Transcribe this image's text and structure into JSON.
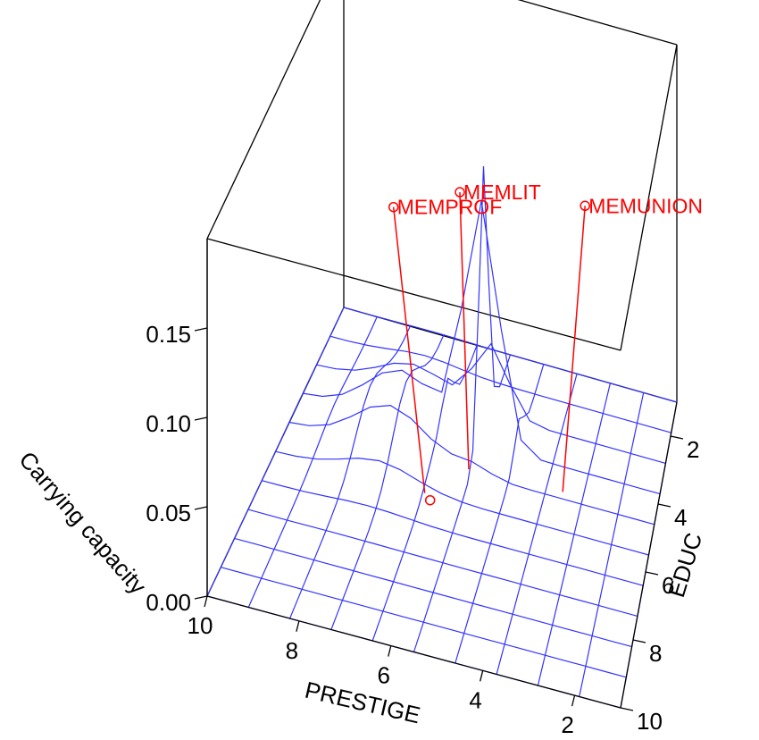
{
  "chart_data": {
    "type": "surface",
    "xlabel": "PRESTIGE",
    "ylabel": "EDUC",
    "zlabel": "Carrying capacity",
    "x_ticks": [
      "2",
      "4",
      "6",
      "8",
      "10"
    ],
    "y_ticks": [
      "2",
      "4",
      "6",
      "8",
      "10"
    ],
    "z_ticks": [
      "0.00",
      "0.05",
      "0.10",
      "0.15"
    ],
    "zlim": [
      0,
      0.2
    ],
    "surface_color": "#3333ff",
    "label_color": "#ff0000",
    "surface_peak": {
      "prestige": 5.5,
      "educ": 3.5,
      "value": 0.15
    },
    "points": [
      {
        "name": "MEMPROF",
        "prestige": 6.4,
        "educ": 5.5
      },
      {
        "name": "MEMLIT",
        "prestige": 5.6,
        "educ": 4.5
      },
      {
        "name": "MEMUNION",
        "prestige": 3.3,
        "educ": 4.4
      }
    ]
  }
}
